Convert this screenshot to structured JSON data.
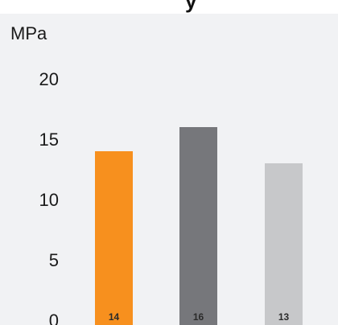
{
  "chart_data": {
    "type": "bar",
    "title": "",
    "xlabel": "",
    "ylabel": "MPa",
    "ylim": [
      0,
      20
    ],
    "yticks": [
      "0",
      "5",
      "10",
      "15",
      "20"
    ],
    "grid": false,
    "values": [
      14,
      16,
      13
    ],
    "value_labels": [
      "14",
      "16",
      "13"
    ],
    "colors": [
      "#f7901e",
      "#76777b",
      "#c7c8ca"
    ]
  },
  "header": {
    "title_fragment": "y"
  },
  "colors": {
    "background": "#f1f2f4"
  }
}
